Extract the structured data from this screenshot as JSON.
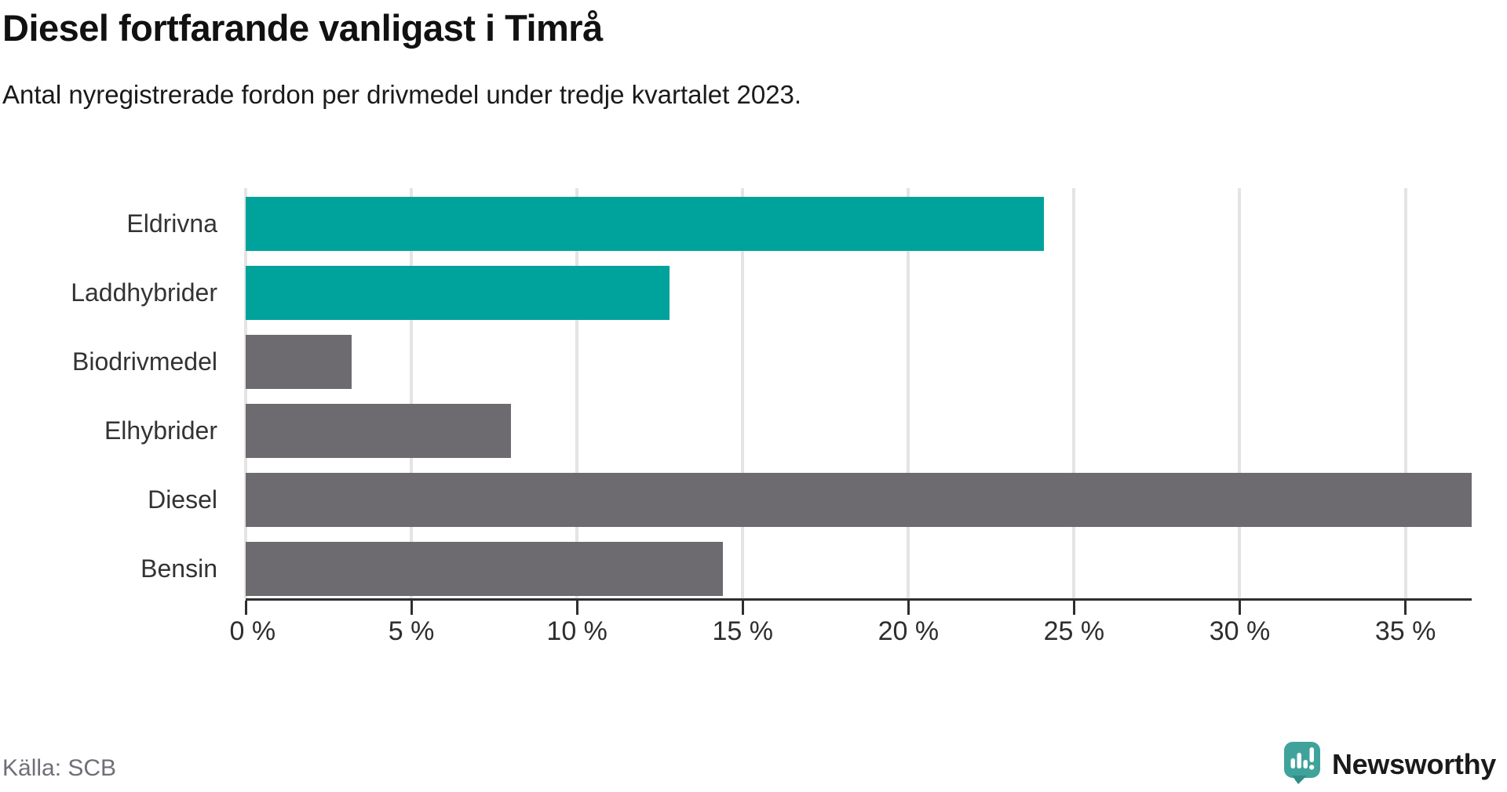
{
  "title": "Diesel fortfarande vanligast i Timrå",
  "subtitle": "Antal nyregistrerade fordon per drivmedel under tredje kvartalet 2023.",
  "source": "Källa: SCB",
  "brand": {
    "name": "Newsworthy",
    "color": "#3fa39c"
  },
  "colors": {
    "teal_bar": "#00a39b",
    "gray_bar": "#6d6a70",
    "gridline": "#e4e4e4",
    "axis": "#2e2e2e",
    "source_text": "#6f6e79"
  },
  "chart_data": {
    "type": "bar",
    "orientation": "horizontal",
    "title": "Diesel fortfarande vanligast i Timrå",
    "subtitle": "Antal nyregistrerade fordon per drivmedel under tredje kvartalet 2023.",
    "categories": [
      "Eldrivna",
      "Laddhybrider",
      "Biodrivmedel",
      "Elhybrider",
      "Diesel",
      "Bensin"
    ],
    "values": [
      24.1,
      12.8,
      3.2,
      8.0,
      37.0,
      14.4
    ],
    "bar_colors": [
      "#00a39b",
      "#00a39b",
      "#6d6a70",
      "#6d6a70",
      "#6d6a70",
      "#6d6a70"
    ],
    "x_tick_values": [
      0,
      5,
      10,
      15,
      20,
      25,
      30,
      35
    ],
    "x_tick_labels": [
      "0 %",
      "5 %",
      "10 %",
      "15 %",
      "20 %",
      "25 %",
      "30 %",
      "35 %"
    ],
    "xlim": [
      0,
      37.0
    ],
    "grid": "vertical",
    "legend": "none"
  }
}
